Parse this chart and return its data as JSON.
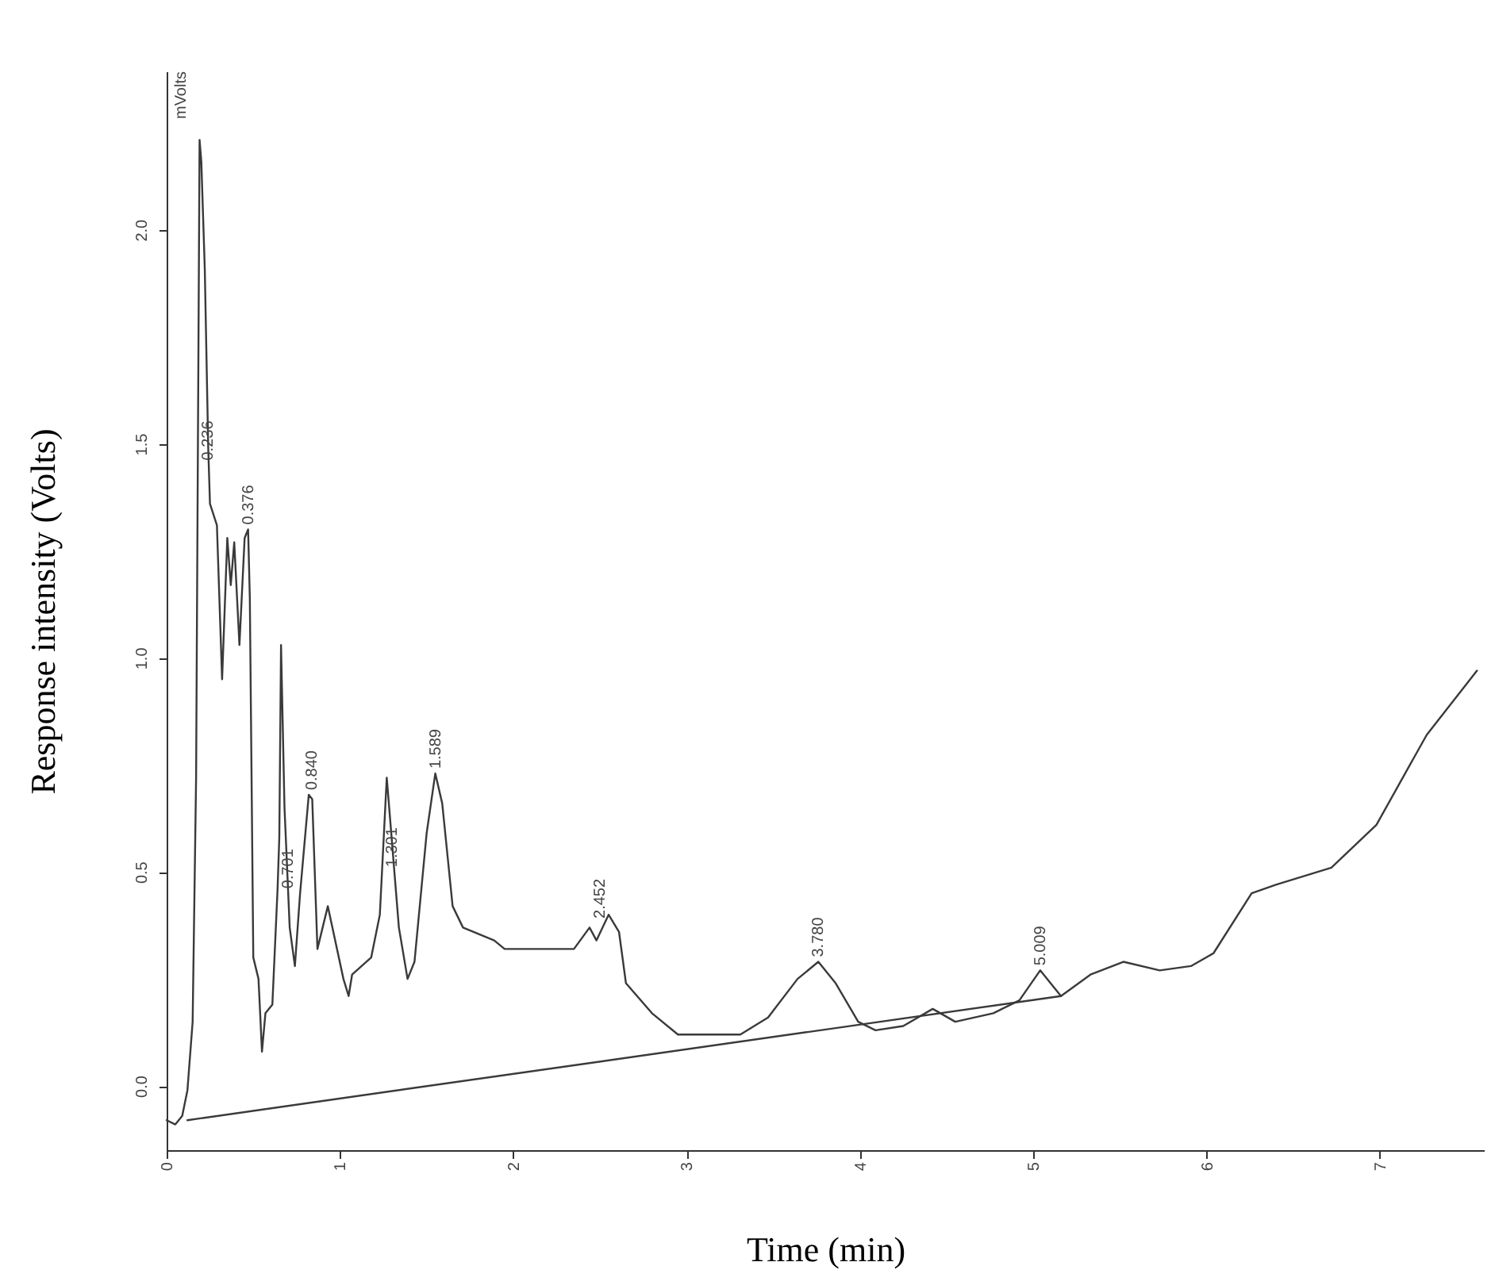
{
  "chart_data": {
    "type": "line",
    "xlabel": "Time (min)",
    "ylabel": "Response intensity (Volts)",
    "xlim": [
      0,
      7.6
    ],
    "ylim": [
      -0.15,
      2.37
    ],
    "xticks": [
      0,
      1,
      2,
      3,
      4,
      5,
      6,
      7
    ],
    "yticks": [
      {
        "value": 0,
        "label": "0.0"
      },
      0.5,
      {
        "value": 1,
        "label": "1.0"
      },
      1.5,
      {
        "value": 2,
        "label": "2.0"
      }
    ],
    "grid": false,
    "marker": "none",
    "line_style": "solid",
    "series": [
      {
        "color": "#3a3a3a",
        "x": [
          0,
          0.05,
          0.09,
          0.12,
          0.15,
          0.17,
          0.19,
          0.2,
          0.22,
          0.24,
          0.25,
          0.29,
          0.32,
          0.35,
          0.37,
          0.39,
          0.42,
          0.45,
          0.47,
          0.48,
          0.5,
          0.53,
          0.55,
          0.57,
          0.61,
          0.64,
          0.65,
          0.66,
          0.68,
          0.71,
          0.74,
          0.77,
          0.82,
          0.84,
          0.87,
          0.93,
          1.02,
          1.05,
          1.07,
          1.18,
          1.23,
          1.27,
          1.29,
          1.34,
          1.39,
          1.43,
          1.5,
          1.55,
          1.59,
          1.65,
          1.71,
          1.89,
          1.95,
          2.35,
          2.44,
          2.48,
          2.55,
          2.61,
          2.65,
          2.8,
          2.95,
          2.99,
          3.31,
          3.47,
          3.64,
          3.76,
          3.86,
          3.99,
          4.09,
          4.25,
          4.42,
          4.55,
          4.77,
          4.92,
          5.04,
          5.16,
          5.33,
          5.52,
          5.73,
          5.91,
          6.04,
          6.26,
          6.4,
          6.72,
          6.98,
          7.27,
          7.56
        ],
        "values": [
          -0.08,
          -0.09,
          -0.07,
          -0.01,
          0.15,
          0.72,
          2.21,
          2.16,
          1.91,
          1.49,
          1.36,
          1.31,
          0.95,
          1.28,
          1.17,
          1.27,
          1.03,
          1.28,
          1.3,
          1.14,
          0.3,
          0.25,
          0.08,
          0.17,
          0.19,
          0.46,
          0.58,
          1.03,
          0.65,
          0.37,
          0.28,
          0.45,
          0.68,
          0.67,
          0.32,
          0.42,
          0.25,
          0.21,
          0.26,
          0.3,
          0.4,
          0.72,
          0.62,
          0.37,
          0.25,
          0.29,
          0.59,
          0.73,
          0.66,
          0.42,
          0.37,
          0.34,
          0.32,
          0.32,
          0.37,
          0.34,
          0.4,
          0.36,
          0.24,
          0.17,
          0.12,
          0.12,
          0.12,
          0.16,
          0.25,
          0.29,
          0.24,
          0.15,
          0.13,
          0.14,
          0.18,
          0.15,
          0.17,
          0.2,
          0.27,
          0.21,
          0.26,
          0.29,
          0.27,
          0.28,
          0.31,
          0.45,
          0.47,
          0.51,
          0.61,
          0.82,
          0.97
        ]
      },
      {
        "type": "line",
        "color": "#3a3a3a",
        "x": [
          0.12,
          5.16
        ],
        "values": [
          -0.08,
          0.21
        ]
      }
    ],
    "annotations": [
      "mVolts",
      {
        "text": "0.236",
        "x": 0.236,
        "y": 1.45
      },
      {
        "text": "0.376",
        "x": 0.47,
        "y": 1.3
      },
      {
        "text": "0.701",
        "x": 0.701,
        "y": 0.45
      },
      {
        "text": "0.840",
        "x": 0.84,
        "y": 0.68
      },
      {
        "text": "1.301",
        "x": 1.301,
        "y": 0.5
      },
      {
        "text": "1.589",
        "x": 1.55,
        "y": 0.73
      },
      {
        "text": "2.452",
        "x": 2.5,
        "y": 0.38
      },
      {
        "text": "3.780",
        "x": 3.76,
        "y": 0.29
      },
      {
        "text": "5.009",
        "x": 5.04,
        "y": 0.27
      }
    ]
  }
}
